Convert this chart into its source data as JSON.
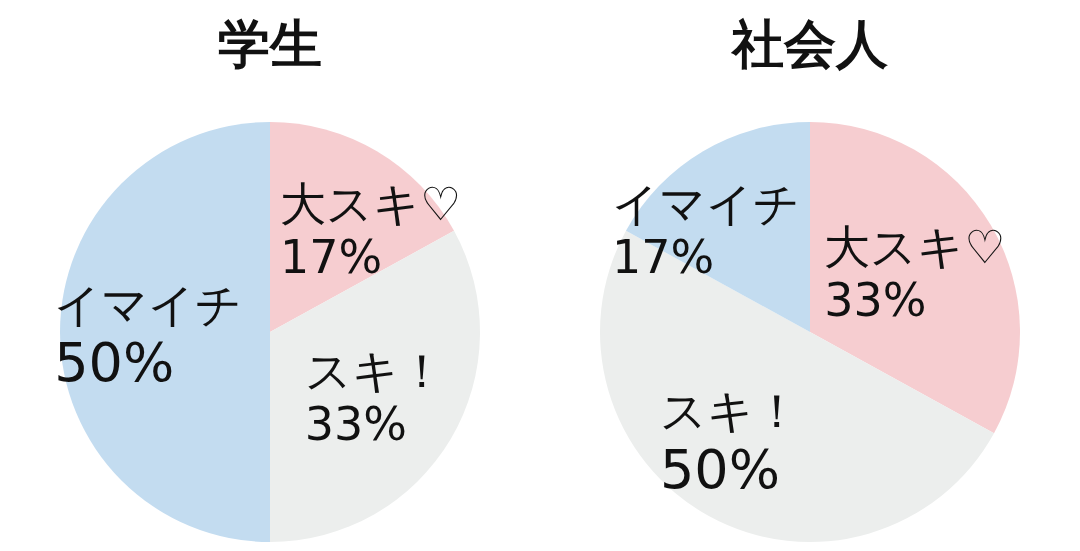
{
  "chart_data": [
    {
      "type": "pie",
      "title": "学生",
      "categories": [
        "大スキ♡",
        "スキ！",
        "イマイチ"
      ],
      "values": [
        17,
        33,
        50
      ],
      "colors": [
        "#f6cdd0",
        "#eceeed",
        "#c3dcf0"
      ],
      "value_labels": [
        "17%",
        "33%",
        "50%"
      ]
    },
    {
      "type": "pie",
      "title": "社会人",
      "categories": [
        "大スキ♡",
        "スキ！",
        "イマイチ"
      ],
      "values": [
        33,
        50,
        17
      ],
      "colors": [
        "#f6cdd0",
        "#eceeed",
        "#c3dcf0"
      ],
      "value_labels": [
        "33%",
        "50%",
        "17%"
      ]
    }
  ]
}
